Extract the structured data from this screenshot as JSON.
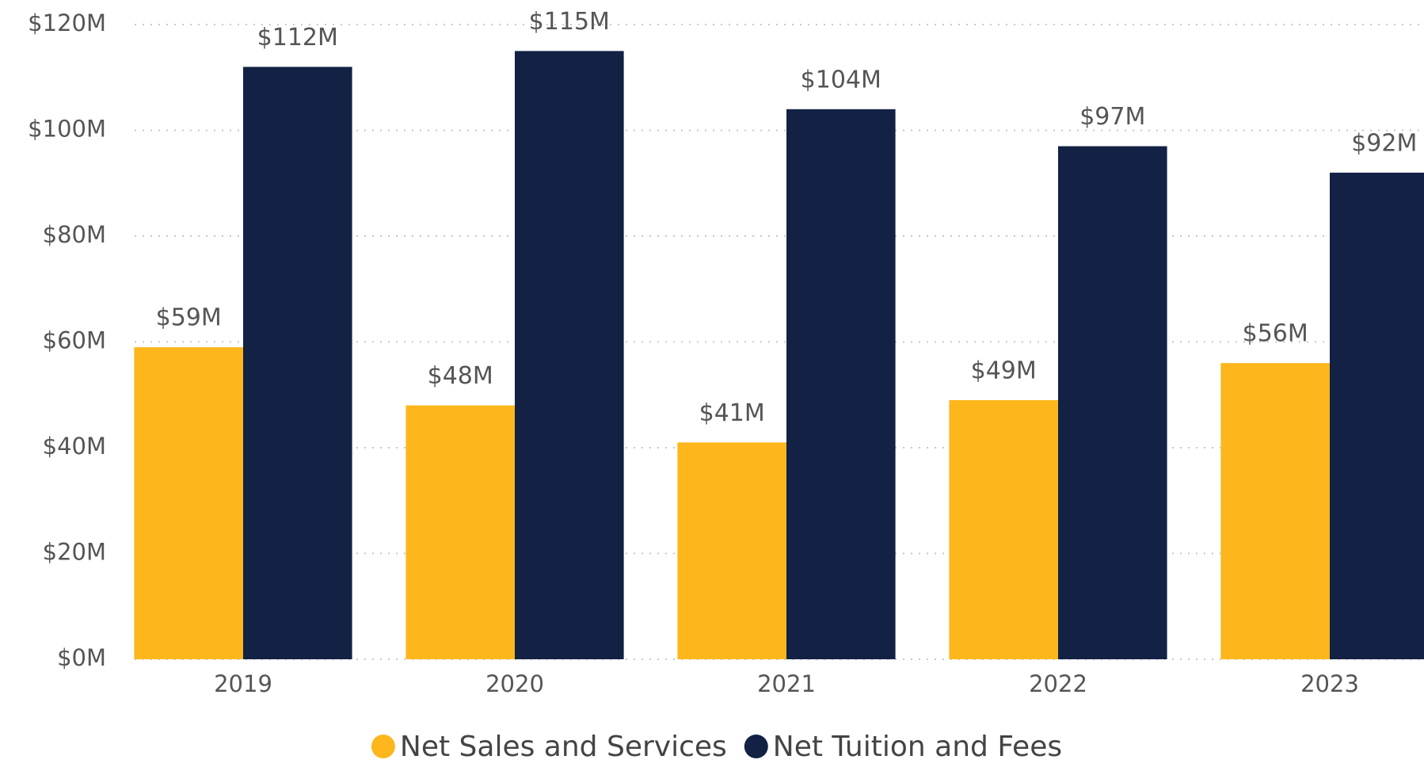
{
  "chart_data": {
    "type": "bar",
    "categories": [
      "2019",
      "2020",
      "2021",
      "2022",
      "2023"
    ],
    "series": [
      {
        "name": "Net Sales and Services",
        "color": "#fdb61c",
        "values": [
          59,
          48,
          41,
          49,
          56
        ],
        "value_labels": [
          "$59M",
          "$48M",
          "$41M",
          "$49M",
          "$56M"
        ]
      },
      {
        "name": "Net Tuition and Fees",
        "color": "#122144",
        "values": [
          112,
          115,
          104,
          97,
          92
        ],
        "value_labels": [
          "$112M",
          "$115M",
          "$104M",
          "$97M",
          "$92M"
        ]
      }
    ],
    "ylim": [
      0,
      120
    ],
    "yticks": [
      {
        "value": 0,
        "label": "$0M"
      },
      {
        "value": 20,
        "label": "$20M"
      },
      {
        "value": 40,
        "label": "$40M"
      },
      {
        "value": 60,
        "label": "$60M"
      },
      {
        "value": 80,
        "label": "$80M"
      },
      {
        "value": 100,
        "label": "$100M"
      },
      {
        "value": 120,
        "label": "$120M"
      }
    ],
    "grid": true,
    "legend": "bottom"
  }
}
